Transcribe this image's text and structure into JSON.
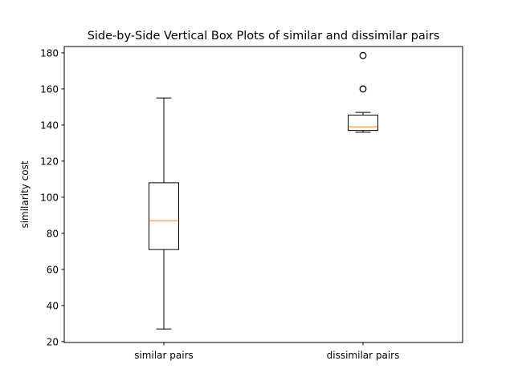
{
  "chart_data": {
    "type": "box",
    "title": "Side-by-Side Vertical Box Plots of similar and dissimilar pairs",
    "xlabel": "",
    "ylabel": "similarity cost",
    "categories": [
      "similar pairs",
      "dissimilar pairs"
    ],
    "ylim": [
      19.5,
      183.5
    ],
    "yticks": [
      20,
      40,
      60,
      80,
      100,
      120,
      140,
      160,
      180
    ],
    "grid": false,
    "boxes": [
      {
        "label": "similar pairs",
        "whisker_low": 27,
        "q1": 71,
        "median": 87,
        "q3": 108,
        "whisker_high": 155,
        "fliers": []
      },
      {
        "label": "dissimilar pairs",
        "whisker_low": 136,
        "q1": 137,
        "median": 139,
        "q3": 145.5,
        "whisker_high": 147,
        "fliers": [
          160,
          178.5
        ]
      }
    ],
    "colors": {
      "box": "#000000",
      "median": "#ff7f0e",
      "flier": "#000000"
    }
  }
}
